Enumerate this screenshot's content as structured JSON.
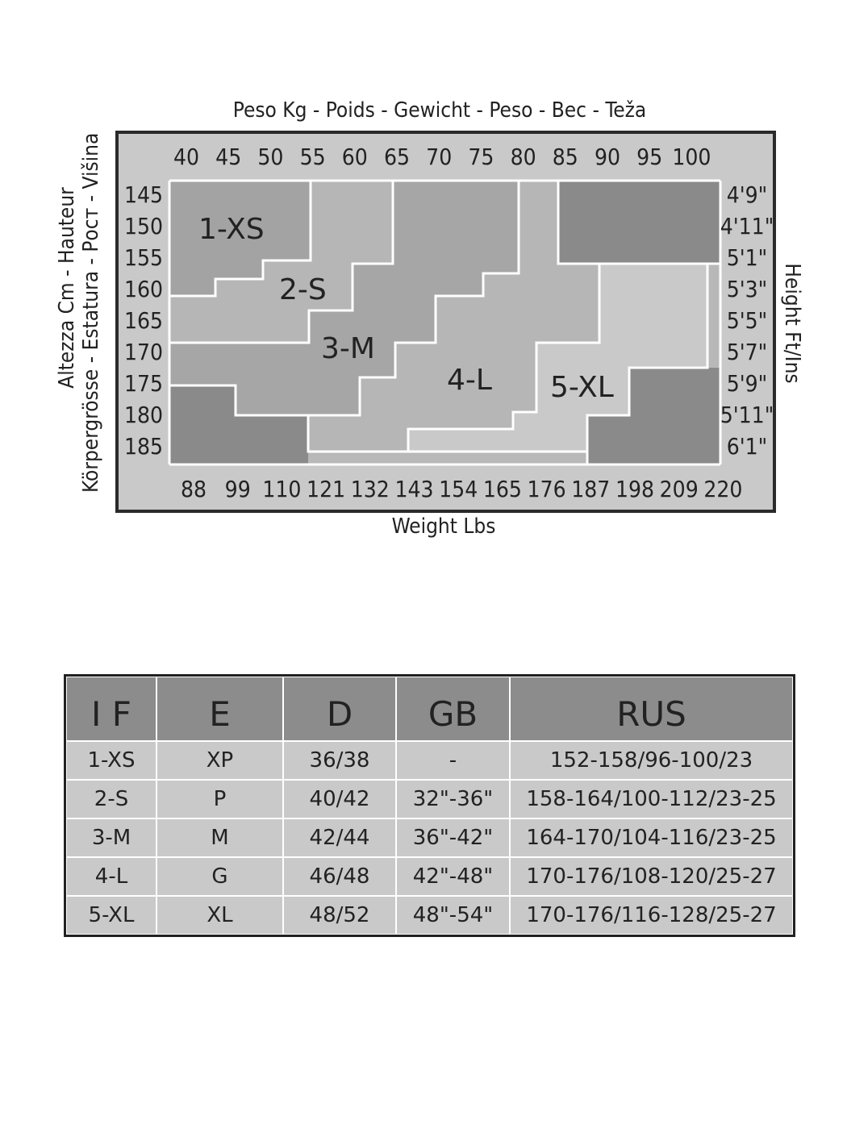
{
  "chart_data": {
    "type": "heatmap",
    "title": "Peso Kg - Poids - Gewicht - Peso - Bec - Teža",
    "x_kg_ticks": [
      "40",
      "45",
      "50",
      "55",
      "60",
      "65",
      "70",
      "75",
      "80",
      "85",
      "90",
      "95",
      "100"
    ],
    "x_lbs_label": "Weight Lbs",
    "x_lbs_ticks": [
      "88",
      "99",
      "110",
      "121",
      "132",
      "143",
      "154",
      "165",
      "176",
      "187",
      "198",
      "209",
      "220"
    ],
    "y_cm_label_line1": "Altezza Cm - Hauteur",
    "y_cm_label_line2": "Körpergrösse - Estatura - Рост - Višina",
    "y_cm_ticks": [
      "145",
      "150",
      "155",
      "160",
      "165",
      "170",
      "175",
      "180",
      "185"
    ],
    "y_ft_label": "Height Ft/Ins",
    "y_ft_ticks": [
      "4'9\"",
      "4'11\"",
      "5'1\"",
      "5'3\"",
      "5'5\"",
      "5'7\"",
      "5'9\"",
      "5'11\"",
      "6'1\""
    ],
    "regions": [
      {
        "name": "1-XS",
        "color": "#a3a3a3"
      },
      {
        "name": "2-S",
        "color": "#b6b6b6"
      },
      {
        "name": "3-M",
        "color": "#a6a6a6"
      },
      {
        "name": "4-L",
        "color": "#b6b6b6"
      },
      {
        "name": "5-XL",
        "color": "#c9c9c9"
      }
    ],
    "out_of_range_color": "#8a8a8a",
    "frame_color": "#c9c9c9"
  },
  "size_table": {
    "headers": [
      "I F",
      "E",
      "D",
      "GB",
      "RUS"
    ],
    "rows": [
      [
        "1-XS",
        "XP",
        "36/38",
        "-",
        "152-158/96-100/23"
      ],
      [
        "2-S",
        "P",
        "40/42",
        "32\"-36\"",
        "158-164/100-112/23-25"
      ],
      [
        "3-M",
        "M",
        "42/44",
        "36\"-42\"",
        "164-170/104-116/23-25"
      ],
      [
        "4-L",
        "G",
        "46/48",
        "42\"-48\"",
        "170-176/108-120/25-27"
      ],
      [
        "5-XL",
        "XL",
        "48/52",
        "48\"-54\"",
        "170-176/116-128/25-27"
      ]
    ]
  }
}
